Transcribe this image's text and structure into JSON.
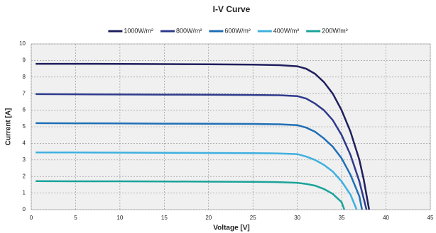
{
  "chart_data": {
    "type": "line",
    "title": "I-V Curve",
    "x_label": "Voltage [V]",
    "y_label": "Current [A]",
    "xlim": [
      0,
      45
    ],
    "xticks": [
      0,
      5,
      10,
      15,
      20,
      25,
      30,
      35,
      40,
      45
    ],
    "ylim": [
      0,
      10
    ],
    "yticks": [
      0,
      1,
      2,
      3,
      4,
      5,
      6,
      7,
      8,
      9,
      10
    ],
    "grid": true,
    "series": [
      {
        "name": "1000W/m²",
        "color": "#1f1f5e",
        "x": [
          0.5,
          5,
          10,
          15,
          20,
          25,
          28,
          30,
          31,
          32,
          33,
          34,
          35,
          36,
          37,
          37.5,
          38.1
        ],
        "values": [
          8.8,
          8.8,
          8.79,
          8.78,
          8.77,
          8.75,
          8.72,
          8.65,
          8.5,
          8.2,
          7.7,
          7,
          6,
          4.7,
          3,
          1.8,
          0
        ]
      },
      {
        "name": "800W/m²",
        "color": "#2e3a8c",
        "x": [
          0.5,
          5,
          10,
          15,
          20,
          25,
          28,
          30,
          31,
          32,
          33,
          34,
          35,
          36,
          37,
          37.8
        ],
        "values": [
          6.97,
          6.96,
          6.95,
          6.94,
          6.93,
          6.92,
          6.9,
          6.85,
          6.7,
          6.4,
          6,
          5.4,
          4.5,
          3.3,
          1.7,
          0
        ]
      },
      {
        "name": "600W/m²",
        "color": "#1f6fb5",
        "x": [
          0.5,
          5,
          10,
          15,
          20,
          25,
          28,
          30,
          31,
          32,
          33,
          34,
          35,
          36,
          37,
          37.3
        ],
        "values": [
          5.22,
          5.21,
          5.2,
          5.19,
          5.18,
          5.17,
          5.15,
          5.1,
          4.95,
          4.7,
          4.3,
          3.8,
          3.1,
          2.1,
          0.8,
          0
        ]
      },
      {
        "name": "400W/m²",
        "color": "#3fb0e0",
        "x": [
          0.5,
          5,
          10,
          15,
          20,
          25,
          28,
          30,
          31,
          32,
          33,
          34,
          35,
          36,
          36.7
        ],
        "values": [
          3.45,
          3.45,
          3.44,
          3.43,
          3.42,
          3.41,
          3.39,
          3.35,
          3.2,
          3,
          2.7,
          2.3,
          1.7,
          0.9,
          0
        ]
      },
      {
        "name": "200W/m²",
        "color": "#1aa39a",
        "x": [
          0.5,
          5,
          10,
          15,
          20,
          25,
          28,
          30,
          31,
          32,
          33,
          34,
          35,
          35.3
        ],
        "values": [
          1.72,
          1.71,
          1.71,
          1.7,
          1.69,
          1.68,
          1.66,
          1.62,
          1.55,
          1.45,
          1.25,
          0.95,
          0.45,
          0
        ]
      }
    ]
  }
}
